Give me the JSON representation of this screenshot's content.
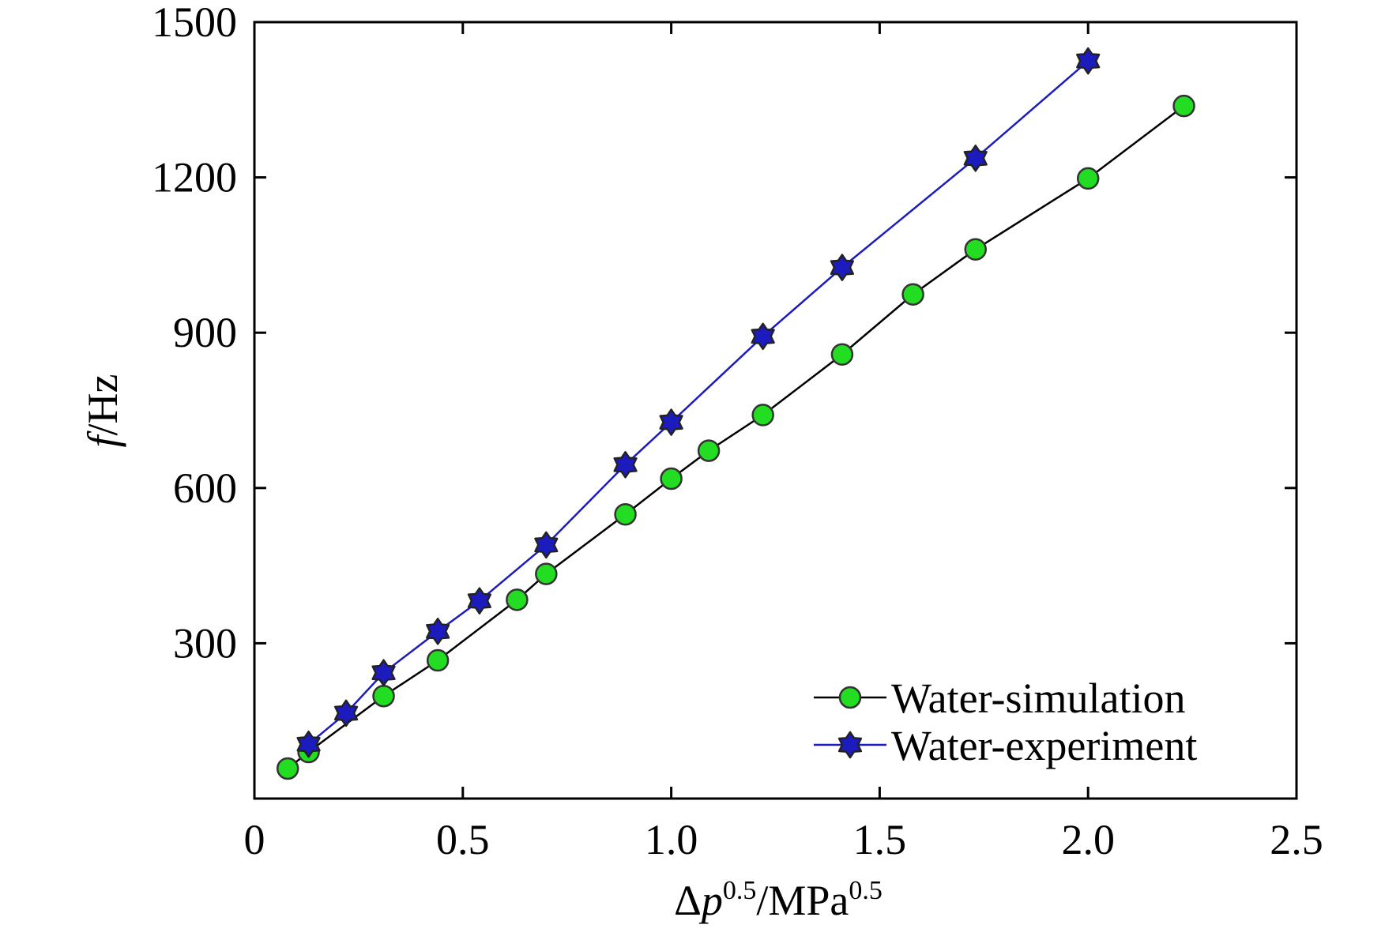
{
  "chart_data": {
    "type": "line",
    "title": "",
    "xlabel": {
      "base": "Δ",
      "var": "p",
      "exp1": "0.5",
      "unit": "/MPa",
      "exp2": "0.5"
    },
    "ylabel": {
      "var": "f",
      "unit": "/Hz"
    },
    "xlim": [
      0,
      2.5
    ],
    "ylim": [
      0,
      1500
    ],
    "x_ticks": [
      "0",
      "0.5",
      "1.0",
      "1.5",
      "2.0",
      "2.5"
    ],
    "y_ticks": [
      "300",
      "600",
      "900",
      "1200",
      "1500"
    ],
    "x_tick_values": [
      0,
      0.5,
      1.0,
      1.5,
      2.0,
      2.5
    ],
    "y_tick_values": [
      300,
      600,
      900,
      1200,
      1500
    ],
    "grid": false,
    "legend_position": "bottom-right",
    "series": [
      {
        "name": "Water-simulation",
        "color": "#000000",
        "marker": "circle",
        "marker_color": "#22dd22",
        "x": [
          0.08,
          0.13,
          0.31,
          0.44,
          0.63,
          0.7,
          0.89,
          1.0,
          1.09,
          1.22,
          1.41,
          1.58,
          1.73,
          2.0,
          2.23
        ],
        "y": [
          58,
          90,
          198,
          267,
          384,
          434,
          549,
          618,
          672,
          741,
          858,
          974,
          1061,
          1198,
          1338
        ]
      },
      {
        "name": "Water-experiment",
        "color": "#1c1cbe",
        "marker": "star",
        "marker_color": "#1c1cbe",
        "x": [
          0.13,
          0.22,
          0.31,
          0.44,
          0.54,
          0.7,
          0.89,
          1.0,
          1.22,
          1.41,
          1.73,
          2.0
        ],
        "y": [
          105,
          165,
          243,
          323,
          382,
          490,
          645,
          727,
          893,
          1026,
          1237,
          1425
        ]
      }
    ]
  }
}
